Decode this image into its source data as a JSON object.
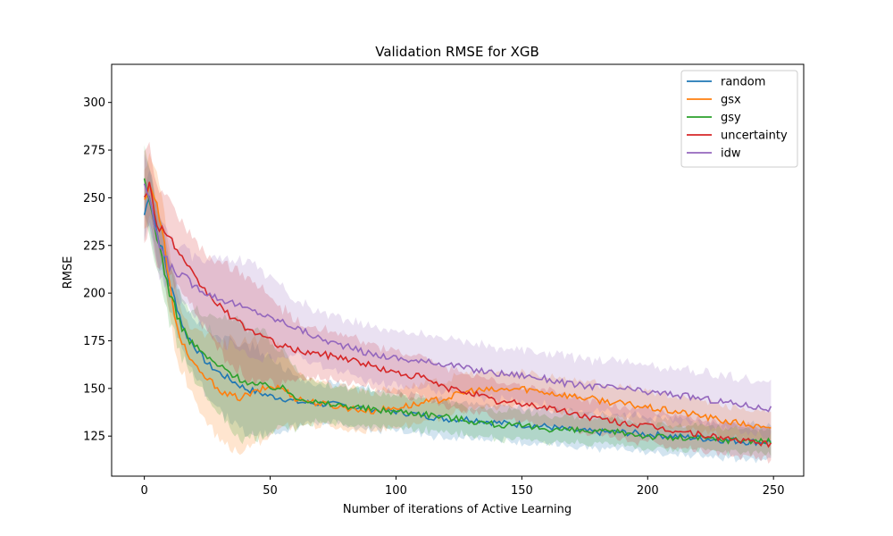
{
  "chart_data": {
    "type": "line",
    "title": "Validation RMSE for XGB",
    "xlabel": "Number of iterations of Active Learning",
    "ylabel": "RMSE",
    "xlim": [
      -13,
      262
    ],
    "ylim": [
      104,
      320
    ],
    "xticks": [
      0,
      50,
      100,
      150,
      200,
      250
    ],
    "yticks": [
      125,
      150,
      175,
      200,
      225,
      250,
      275,
      300
    ],
    "legend_position": "top-right",
    "grid": false,
    "shaded_bands": true,
    "series": [
      {
        "name": "random",
        "color": "#1f77b4",
        "points": [
          [
            0,
            241
          ],
          [
            2,
            252
          ],
          [
            5,
            232
          ],
          [
            8,
            218
          ],
          [
            10,
            205
          ],
          [
            13,
            193
          ],
          [
            16,
            180
          ],
          [
            20,
            172
          ],
          [
            25,
            163
          ],
          [
            30,
            158
          ],
          [
            35,
            154
          ],
          [
            40,
            150
          ],
          [
            45,
            148
          ],
          [
            50,
            146
          ],
          [
            55,
            145
          ],
          [
            60,
            143
          ],
          [
            70,
            142
          ],
          [
            80,
            141
          ],
          [
            90,
            139
          ],
          [
            100,
            138
          ],
          [
            110,
            136
          ],
          [
            120,
            134
          ],
          [
            130,
            134
          ],
          [
            140,
            132
          ],
          [
            150,
            131
          ],
          [
            160,
            130
          ],
          [
            170,
            128
          ],
          [
            180,
            127
          ],
          [
            190,
            127
          ],
          [
            200,
            126
          ],
          [
            210,
            125
          ],
          [
            220,
            124
          ],
          [
            230,
            123
          ],
          [
            240,
            122
          ],
          [
            249,
            122
          ]
        ],
        "band": [
          14,
          30,
          9
        ]
      },
      {
        "name": "gsx",
        "color": "#ff7f0e",
        "points": [
          [
            0,
            248
          ],
          [
            2,
            258
          ],
          [
            5,
            246
          ],
          [
            8,
            225
          ],
          [
            10,
            205
          ],
          [
            12,
            186
          ],
          [
            15,
            175
          ],
          [
            18,
            166
          ],
          [
            22,
            158
          ],
          [
            27,
            153
          ],
          [
            32,
            147
          ],
          [
            38,
            145
          ],
          [
            44,
            148
          ],
          [
            50,
            151
          ],
          [
            55,
            150
          ],
          [
            60,
            145
          ],
          [
            70,
            142
          ],
          [
            80,
            140
          ],
          [
            90,
            138
          ],
          [
            100,
            140
          ],
          [
            110,
            142
          ],
          [
            120,
            145
          ],
          [
            130,
            149
          ],
          [
            140,
            149
          ],
          [
            150,
            150
          ],
          [
            160,
            148
          ],
          [
            170,
            146
          ],
          [
            180,
            144
          ],
          [
            190,
            142
          ],
          [
            200,
            140
          ],
          [
            210,
            138
          ],
          [
            220,
            136
          ],
          [
            230,
            133
          ],
          [
            240,
            131
          ],
          [
            249,
            128
          ]
        ],
        "band": [
          18,
          38,
          8
        ]
      },
      {
        "name": "gsy",
        "color": "#2ca02c",
        "points": [
          [
            0,
            258
          ],
          [
            2,
            248
          ],
          [
            5,
            230
          ],
          [
            8,
            212
          ],
          [
            10,
            200
          ],
          [
            14,
            185
          ],
          [
            18,
            175
          ],
          [
            22,
            170
          ],
          [
            27,
            164
          ],
          [
            32,
            160
          ],
          [
            38,
            155
          ],
          [
            44,
            152
          ],
          [
            50,
            151
          ],
          [
            55,
            150
          ],
          [
            60,
            146
          ],
          [
            70,
            142
          ],
          [
            80,
            141
          ],
          [
            90,
            139
          ],
          [
            100,
            138
          ],
          [
            110,
            137
          ],
          [
            120,
            135
          ],
          [
            130,
            133
          ],
          [
            140,
            131
          ],
          [
            150,
            130
          ],
          [
            160,
            129
          ],
          [
            170,
            128
          ],
          [
            180,
            127
          ],
          [
            190,
            127
          ],
          [
            200,
            125
          ],
          [
            210,
            124
          ],
          [
            220,
            124
          ],
          [
            230,
            123
          ],
          [
            240,
            123
          ],
          [
            249,
            122
          ]
        ],
        "band": [
          18,
          40,
          6
        ]
      },
      {
        "name": "uncertainty",
        "color": "#d62728",
        "points": [
          [
            0,
            252
          ],
          [
            2,
            257
          ],
          [
            5,
            236
          ],
          [
            8,
            233
          ],
          [
            12,
            225
          ],
          [
            16,
            215
          ],
          [
            20,
            208
          ],
          [
            25,
            200
          ],
          [
            30,
            193
          ],
          [
            35,
            187
          ],
          [
            40,
            182
          ],
          [
            45,
            179
          ],
          [
            50,
            175
          ],
          [
            55,
            172
          ],
          [
            60,
            170
          ],
          [
            70,
            168
          ],
          [
            80,
            166
          ],
          [
            90,
            162
          ],
          [
            100,
            158
          ],
          [
            110,
            156
          ],
          [
            120,
            150
          ],
          [
            130,
            148
          ],
          [
            140,
            143
          ],
          [
            150,
            142
          ],
          [
            160,
            140
          ],
          [
            170,
            137
          ],
          [
            180,
            134
          ],
          [
            190,
            132
          ],
          [
            200,
            130
          ],
          [
            210,
            128
          ],
          [
            220,
            126
          ],
          [
            230,
            124
          ],
          [
            240,
            122
          ],
          [
            249,
            121
          ]
        ],
        "band": [
          22,
          32,
          8
        ]
      },
      {
        "name": "idw",
        "color": "#9467bd",
        "points": [
          [
            0,
            258
          ],
          [
            3,
            242
          ],
          [
            6,
            225
          ],
          [
            10,
            214
          ],
          [
            15,
            209
          ],
          [
            20,
            204
          ],
          [
            25,
            200
          ],
          [
            30,
            197
          ],
          [
            35,
            195
          ],
          [
            40,
            192
          ],
          [
            45,
            190
          ],
          [
            50,
            187
          ],
          [
            55,
            185
          ],
          [
            60,
            182
          ],
          [
            70,
            176
          ],
          [
            80,
            172
          ],
          [
            90,
            168
          ],
          [
            100,
            166
          ],
          [
            110,
            164
          ],
          [
            120,
            163
          ],
          [
            130,
            160
          ],
          [
            140,
            158
          ],
          [
            150,
            157
          ],
          [
            160,
            155
          ],
          [
            170,
            152
          ],
          [
            180,
            151
          ],
          [
            190,
            150
          ],
          [
            200,
            148
          ],
          [
            210,
            147
          ],
          [
            220,
            145
          ],
          [
            230,
            143
          ],
          [
            240,
            141
          ],
          [
            249,
            139
          ]
        ],
        "band": [
          16,
          28,
          14
        ]
      }
    ]
  }
}
